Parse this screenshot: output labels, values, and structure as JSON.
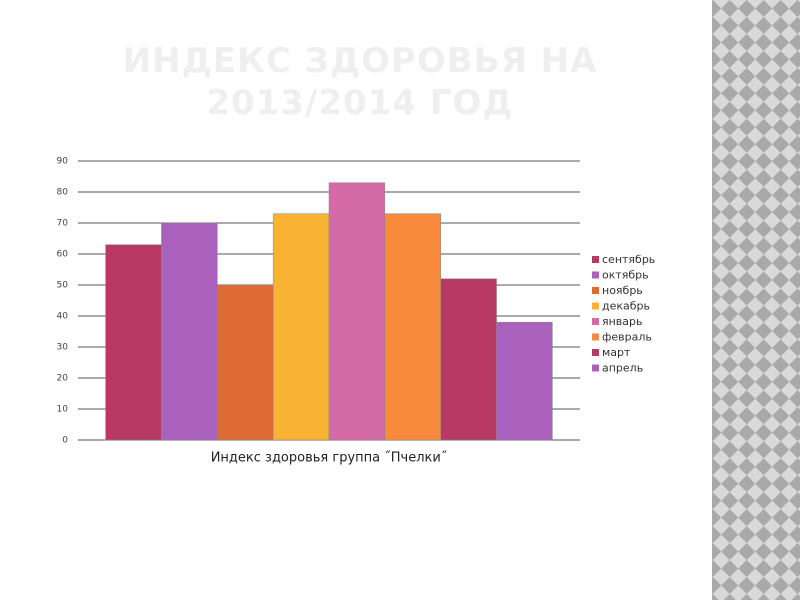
{
  "chart_data": {
    "type": "bar",
    "title": "ИНДЕКС ЗДОРОВЬЯ НА 2013/2014 ГОД",
    "categories": [
      "Индекс здоровья группа ˝Пчелки˝"
    ],
    "series": [
      {
        "name": "сентябрь",
        "color": "#b83a64",
        "values": [
          63
        ]
      },
      {
        "name": "октябрь",
        "color": "#a961bd",
        "values": [
          70
        ]
      },
      {
        "name": "ноябрь",
        "color": "#e06a34",
        "values": [
          50
        ]
      },
      {
        "name": "декабрь",
        "color": "#f8b334",
        "values": [
          73
        ]
      },
      {
        "name": "январь",
        "color": "#d46aa6",
        "values": [
          83
        ]
      },
      {
        "name": "февраль",
        "color": "#f78a3c",
        "values": [
          73
        ]
      },
      {
        "name": "март",
        "color": "#b83a64",
        "values": [
          52
        ]
      },
      {
        "name": "апрель",
        "color": "#a961bd",
        "values": [
          38
        ]
      }
    ],
    "ylim": [
      0,
      90
    ],
    "yticks": [
      0,
      10,
      20,
      30,
      40,
      50,
      60,
      70,
      80,
      90
    ],
    "grid": true,
    "legend": "right"
  }
}
